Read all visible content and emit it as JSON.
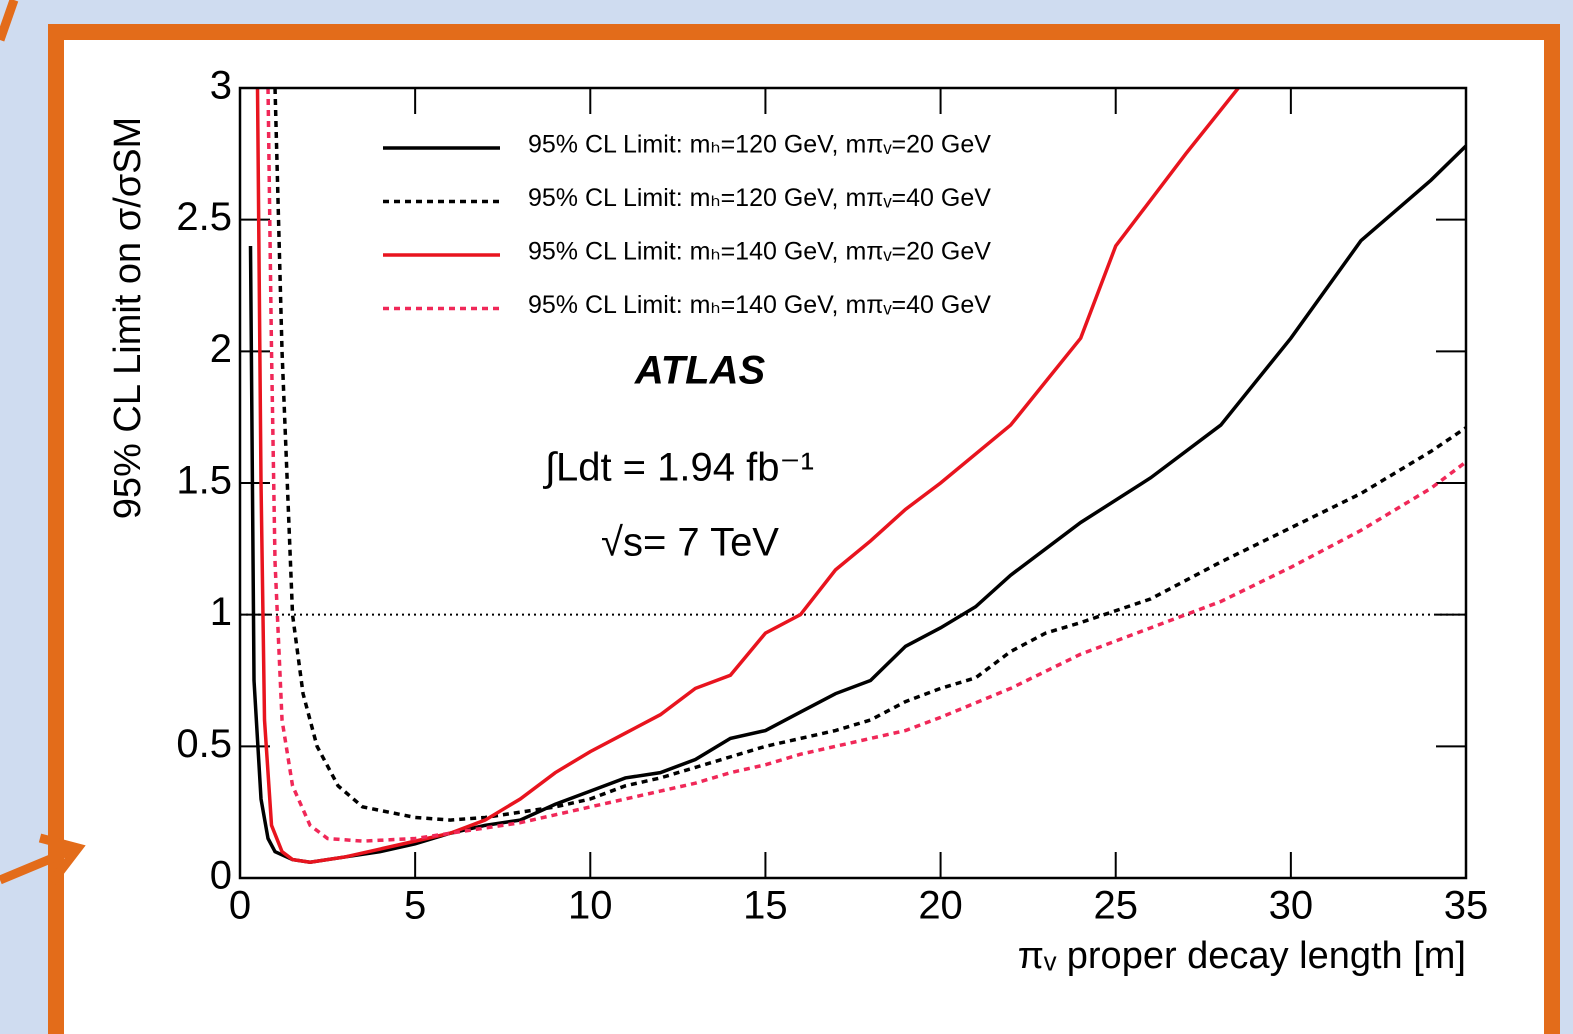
{
  "chart_data": {
    "type": "line",
    "x_label": "πᵥ proper decay length [m]",
    "y_label": "95% CL Limit on σ/σSM",
    "annotations": [
      "ATLAS",
      "∫Ldt = 1.94 fb⁻¹",
      "√s= 7 TeV"
    ],
    "xlim": [
      0,
      35
    ],
    "xticks": [
      0,
      5,
      10,
      15,
      20,
      25,
      30,
      35
    ],
    "ylim": [
      0,
      3
    ],
    "yticks": [
      0,
      0.5,
      1,
      1.5,
      2,
      2.5,
      3
    ],
    "reference_line": 1,
    "series": [
      {
        "name": "95% CL Limit: mₕ=120 GeV, mπᵥ=20 GeV",
        "color": "#000000",
        "dashed": false,
        "x": [
          0.3,
          0.4,
          0.6,
          0.8,
          1.0,
          1.5,
          2,
          3,
          4,
          5,
          6,
          7,
          8,
          9,
          10,
          11,
          12,
          13,
          14,
          15,
          16,
          17,
          18,
          19,
          20,
          21,
          22,
          24,
          26,
          28,
          30,
          32,
          34,
          35
        ],
        "values": [
          2.4,
          0.75,
          0.3,
          0.15,
          0.1,
          0.07,
          0.06,
          0.08,
          0.1,
          0.13,
          0.17,
          0.2,
          0.22,
          0.28,
          0.33,
          0.38,
          0.4,
          0.45,
          0.53,
          0.56,
          0.63,
          0.7,
          0.75,
          0.88,
          0.95,
          1.03,
          1.15,
          1.35,
          1.52,
          1.72,
          2.05,
          2.42,
          2.65,
          2.78
        ]
      },
      {
        "name": "95% CL Limit: mₕ=120 GeV, mπᵥ=40 GeV",
        "color": "#000000",
        "dashed": true,
        "x": [
          1.0,
          1.2,
          1.5,
          1.8,
          2.2,
          2.8,
          3.5,
          5,
          6,
          7,
          8,
          9,
          10,
          11,
          12,
          13,
          14,
          15,
          16,
          17,
          18,
          19,
          20,
          21,
          22,
          23,
          24,
          26,
          28,
          30,
          32,
          34,
          35
        ],
        "values": [
          3.0,
          2.0,
          1.0,
          0.7,
          0.5,
          0.35,
          0.27,
          0.23,
          0.22,
          0.23,
          0.25,
          0.27,
          0.3,
          0.35,
          0.38,
          0.42,
          0.46,
          0.5,
          0.53,
          0.56,
          0.6,
          0.67,
          0.72,
          0.76,
          0.86,
          0.93,
          0.97,
          1.06,
          1.2,
          1.33,
          1.46,
          1.62,
          1.71
        ]
      },
      {
        "name": "95% CL Limit: mₕ=140 GeV, mπᵥ=20 GeV",
        "color": "#e8141e",
        "dashed": false,
        "x": [
          0.5,
          0.6,
          0.7,
          0.9,
          1.2,
          1.5,
          2,
          3,
          4,
          5,
          6,
          7,
          8,
          9,
          10,
          11,
          12,
          13,
          14,
          15,
          16,
          17,
          18,
          19,
          20,
          22,
          24,
          25,
          27,
          28.5
        ],
        "values": [
          3.0,
          1.5,
          0.6,
          0.2,
          0.1,
          0.07,
          0.06,
          0.08,
          0.11,
          0.14,
          0.17,
          0.22,
          0.3,
          0.4,
          0.48,
          0.55,
          0.62,
          0.72,
          0.77,
          0.93,
          1.0,
          1.17,
          1.28,
          1.4,
          1.5,
          1.72,
          2.05,
          2.4,
          2.75,
          3.0
        ]
      },
      {
        "name": "95% CL Limit: mₕ=140 GeV, mπᵥ=40 GeV",
        "color": "#f02858",
        "dashed": true,
        "x": [
          0.8,
          0.9,
          1.0,
          1.2,
          1.5,
          2,
          2.5,
          3.5,
          5,
          6,
          7,
          8,
          9,
          10,
          11,
          12,
          13,
          14,
          15,
          16,
          17,
          18,
          19,
          20,
          22,
          24,
          26,
          28,
          30,
          32,
          34,
          35
        ],
        "values": [
          3.0,
          2.0,
          1.2,
          0.6,
          0.35,
          0.2,
          0.15,
          0.14,
          0.15,
          0.17,
          0.19,
          0.21,
          0.24,
          0.27,
          0.3,
          0.33,
          0.36,
          0.4,
          0.43,
          0.47,
          0.5,
          0.53,
          0.56,
          0.61,
          0.72,
          0.85,
          0.95,
          1.05,
          1.18,
          1.32,
          1.48,
          1.58
        ]
      }
    ]
  }
}
